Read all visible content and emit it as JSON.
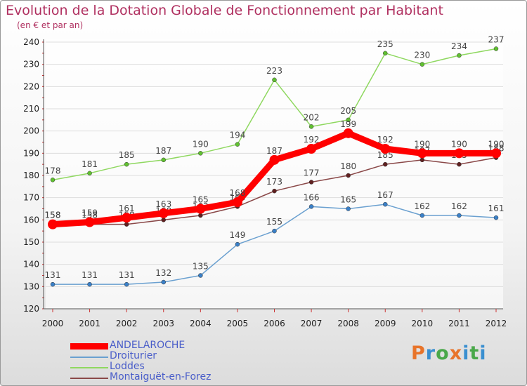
{
  "title": "Evolution de la Dotation Globale de Fonctionnement par Habitant",
  "subtitle": "(en € et par an)",
  "logo": {
    "text": "Proxiti",
    "colors": [
      "#e8742a",
      "#3a8fd0",
      "#4aa84a",
      "#e8742a",
      "#3a8fd0",
      "#4aa84a",
      "#3a8fd0"
    ]
  },
  "chart_data": {
    "type": "line",
    "title": "Evolution de la Dotation Globale de Fonctionnement par Habitant",
    "subtitle": "(en € et par an)",
    "xlabel": "",
    "ylabel": "",
    "x": [
      "2000",
      "2001",
      "2002",
      "2003",
      "2004",
      "2005",
      "2006",
      "2007",
      "2008",
      "2009",
      "2010",
      "2011",
      "2012"
    ],
    "ylim": [
      120,
      240
    ],
    "yticks": [
      120,
      130,
      140,
      150,
      160,
      170,
      180,
      190,
      200,
      210,
      220,
      230,
      240
    ],
    "grid": "horizontal",
    "legend_position": "bottom-left",
    "series": [
      {
        "name": "Droiturier",
        "color": "#6aa0d0",
        "marker": "#3a80c8",
        "values": [
          131,
          131,
          131,
          132,
          135,
          149,
          155,
          166,
          165,
          167,
          162,
          162,
          161
        ]
      },
      {
        "name": "Loddes",
        "color": "#8fd860",
        "marker": "#60c030",
        "values": [
          178,
          181,
          185,
          187,
          190,
          194,
          223,
          202,
          205,
          235,
          230,
          234,
          237
        ]
      },
      {
        "name": "Montaiguët-en-Forez",
        "color": "#8a4848",
        "marker": "#602020",
        "values": [
          158,
          158,
          158,
          160,
          162,
          166,
          173,
          177,
          180,
          185,
          187,
          185,
          188
        ]
      },
      {
        "name": "ANDELAROCHE",
        "color": "#ff0000",
        "marker": "#ff0000",
        "values": [
          158,
          159,
          161,
          163,
          165,
          168,
          187,
          192,
          199,
          192,
          190,
          190,
          190
        ],
        "bold": true
      }
    ],
    "legend_order": [
      "ANDELAROCHE",
      "Droiturier",
      "Loddes",
      "Montaiguët-en-Forez"
    ]
  }
}
